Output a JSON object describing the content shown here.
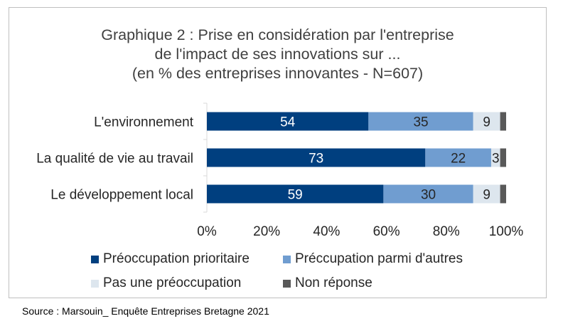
{
  "chart_data": {
    "type": "bar",
    "orientation": "horizontal",
    "stacked": true,
    "title_lines": [
      "Graphique 2 : Prise en considération par l'entreprise",
      "de l'impact de ses innovations sur ...",
      "(en % des entreprises innovantes - N=607)"
    ],
    "categories": [
      "L'environnement",
      "La qualité de vie au travail",
      "Le développement local"
    ],
    "series": [
      {
        "name": "Préoccupation prioritaire",
        "values": [
          54,
          73,
          59
        ],
        "color": "#003f7f",
        "label_color": "#ffffff"
      },
      {
        "name": "Préccupation parmi d'autres",
        "values": [
          35,
          22,
          30
        ],
        "color": "#709dd0",
        "label_color": "#262626"
      },
      {
        "name": "Pas une préoccupation",
        "values": [
          9,
          3,
          9
        ],
        "color": "#dde6ee",
        "label_color": "#262626"
      },
      {
        "name": "Non réponse",
        "values": [
          2,
          2,
          2
        ],
        "color": "#595959",
        "label_color": null
      }
    ],
    "xlim": [
      0,
      100
    ],
    "x_ticks": [
      "0%",
      "20%",
      "40%",
      "60%",
      "80%",
      "100%"
    ],
    "grid": false,
    "legend_position": "bottom"
  },
  "source": "Source : Marsouin_ Enquête Entreprises Bretagne 2021"
}
